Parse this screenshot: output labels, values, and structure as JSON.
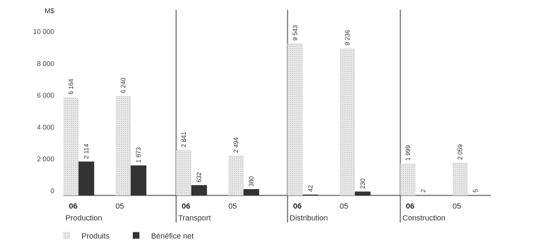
{
  "chart_data": {
    "type": "bar",
    "unit_label": "M$",
    "ylim": [
      0,
      11000
    ],
    "yticks": [
      {
        "value": 0,
        "label": "0"
      },
      {
        "value": 2000,
        "label": "2 000"
      },
      {
        "value": 4000,
        "label": "4 000"
      },
      {
        "value": 6000,
        "label": "6 000"
      },
      {
        "value": 8000,
        "label": "8 000"
      },
      {
        "value": 10000,
        "label": "10 000"
      }
    ],
    "series": [
      {
        "name": "Produits",
        "color": "#dcdcdc"
      },
      {
        "name": "Bénéfice net",
        "color": "#333333"
      }
    ],
    "groups": [
      {
        "name": "Production",
        "years": [
          {
            "label": "06",
            "bold": true,
            "values": [
              6164,
              2114
            ],
            "value_labels": [
              "6 164",
              "2 114"
            ]
          },
          {
            "label": "05",
            "bold": false,
            "values": [
              6240,
              1873
            ],
            "value_labels": [
              "6 240",
              "1 873"
            ]
          }
        ]
      },
      {
        "name": "Transport",
        "years": [
          {
            "label": "06",
            "bold": true,
            "values": [
              2841,
              632
            ],
            "value_labels": [
              "2 841",
              "632"
            ]
          },
          {
            "label": "05",
            "bold": false,
            "values": [
              2494,
              380
            ],
            "value_labels": [
              "2 494",
              "380"
            ]
          }
        ]
      },
      {
        "name": "Distribution",
        "years": [
          {
            "label": "06",
            "bold": true,
            "values": [
              9543,
              42
            ],
            "value_labels": [
              "9 543",
              "42"
            ]
          },
          {
            "label": "05",
            "bold": false,
            "values": [
              9236,
              230
            ],
            "value_labels": [
              "9 236",
              "230"
            ]
          }
        ]
      },
      {
        "name": "Construction",
        "years": [
          {
            "label": "06",
            "bold": true,
            "values": [
              1999,
              2
            ],
            "value_labels": [
              "1 999",
              "2"
            ]
          },
          {
            "label": "05",
            "bold": false,
            "values": [
              2059,
              5
            ],
            "value_labels": [
              "2 059",
              "5"
            ]
          }
        ]
      }
    ],
    "grid": false,
    "legend_position": "bottom-left"
  }
}
